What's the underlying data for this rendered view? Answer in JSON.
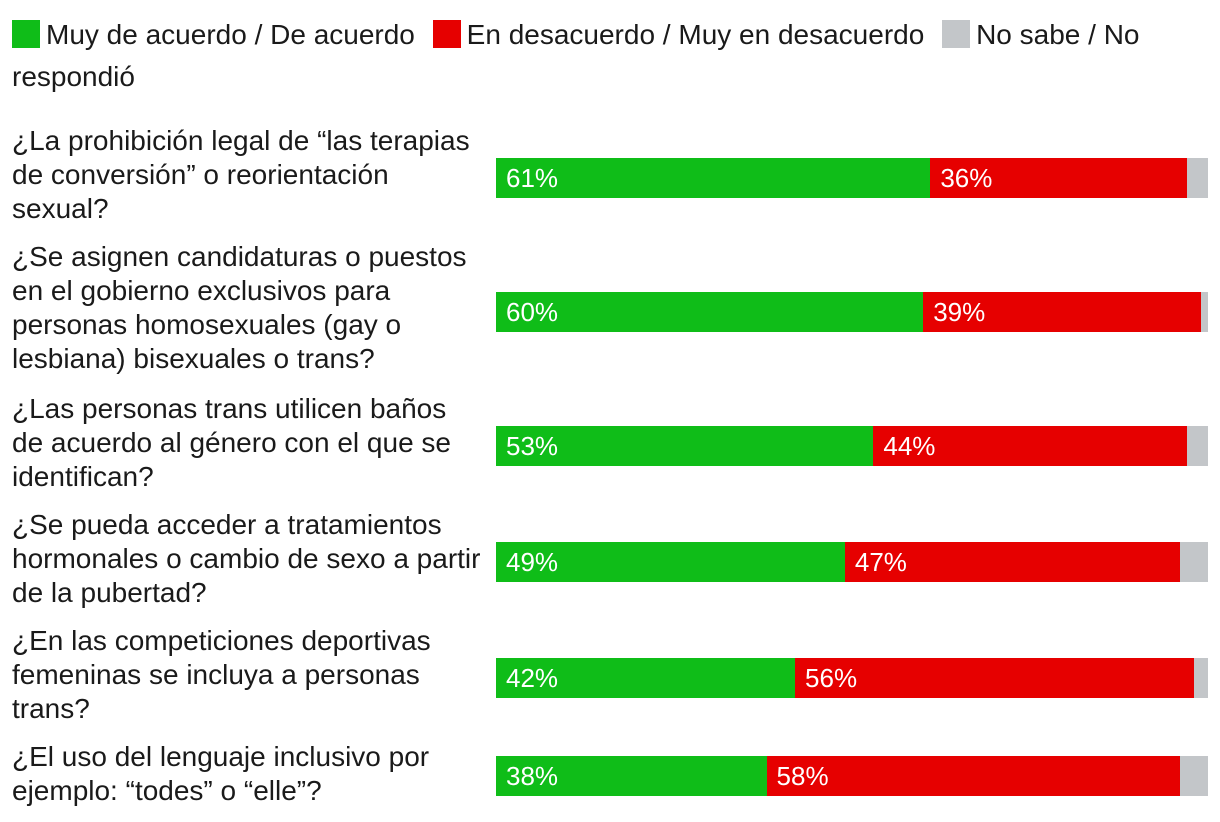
{
  "colors": {
    "agree": "#0fbd18",
    "disagree": "#e60000",
    "nr": "#c3c6c9"
  },
  "legend": [
    {
      "key": "agree",
      "label": "Muy de acuerdo / De acuerdo"
    },
    {
      "key": "disagree",
      "label": "En desacuerdo / Muy en desacuerdo"
    },
    {
      "key": "nr",
      "label": "No sabe / No respondió"
    }
  ],
  "chart_data": {
    "type": "bar",
    "orientation": "horizontal",
    "stacked": true,
    "categories": [
      "¿La prohibición legal de “las terapias de conversión” o reorientación sexual?",
      "¿Se asignen candidaturas o puestos en el gobierno exclusivos para personas homosexuales (gay o lesbiana) bisexuales o trans?",
      "¿Las personas trans utilicen baños de acuerdo al género con el que se identifican?",
      "¿Se pueda acceder a tratamientos hormonales o cambio de sexo a partir de la pubertad?",
      "¿En las competiciones deportivas femeninas se incluya a personas trans?",
      "¿El uso del lenguaje inclusivo por ejemplo: “todes” o “elle”?"
    ],
    "series": [
      {
        "name": "Muy de acuerdo / De acuerdo",
        "values": [
          61,
          60,
          53,
          49,
          42,
          38
        ]
      },
      {
        "name": "En desacuerdo / Muy en desacuerdo",
        "values": [
          36,
          39,
          44,
          47,
          56,
          58
        ]
      },
      {
        "name": "No sabe / No respondió",
        "values": [
          3,
          1,
          3,
          4,
          2,
          4
        ]
      }
    ],
    "labels": [
      [
        "61%",
        "36%"
      ],
      [
        "60%",
        "39%"
      ],
      [
        "53%",
        "44%"
      ],
      [
        "49%",
        "47%"
      ],
      [
        "42%",
        "56%"
      ],
      [
        "38%",
        "58%"
      ]
    ],
    "xlim": [
      0,
      100
    ],
    "legend_position": "top"
  }
}
